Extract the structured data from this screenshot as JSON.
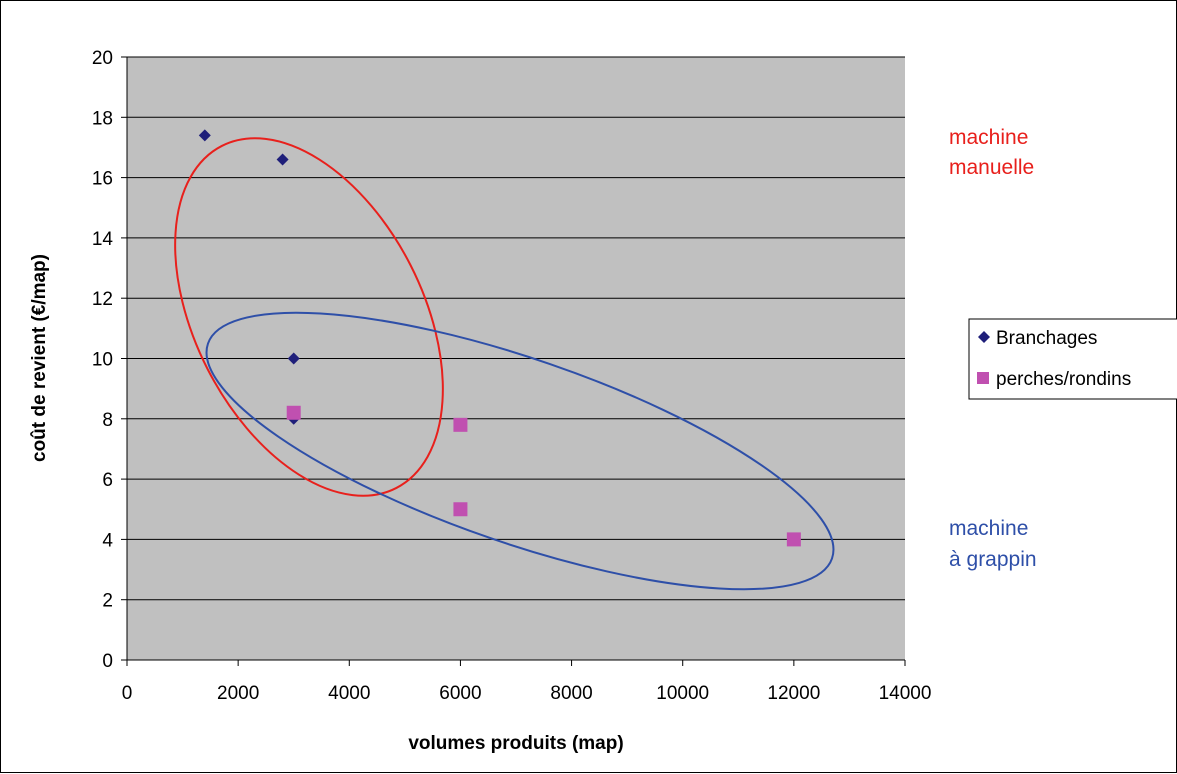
{
  "chart_data": {
    "type": "scatter",
    "title": "",
    "xlabel": "volumes produits (map)",
    "ylabel": "coût de revient (€/map)",
    "xlim": [
      0,
      14000
    ],
    "ylim": [
      0,
      20
    ],
    "x_ticks": [
      0,
      2000,
      4000,
      6000,
      8000,
      10000,
      12000,
      14000
    ],
    "y_ticks": [
      0,
      2,
      4,
      6,
      8,
      10,
      12,
      14,
      16,
      18,
      20
    ],
    "grid": "horizontal",
    "plot_background": "#c0c0c0",
    "legend_position": "right",
    "series": [
      {
        "name": "Branchages",
        "marker": "diamond",
        "color": "#1f1f7a",
        "points": [
          [
            1400,
            17.4
          ],
          [
            2800,
            16.6
          ],
          [
            3000,
            10.0
          ],
          [
            3000,
            8.0
          ]
        ]
      },
      {
        "name": "perches/rondins",
        "marker": "square",
        "color": "#c050b0",
        "points": [
          [
            3000,
            8.2
          ],
          [
            6000,
            7.8
          ],
          [
            6000,
            5.0
          ],
          [
            12000,
            4.0
          ]
        ]
      }
    ],
    "annotations": [
      {
        "text_lines": [
          "machine",
          "manuelle"
        ],
        "color": "#e8201c"
      },
      {
        "text_lines": [
          "machine",
          "à grappin"
        ],
        "color": "#2e4fa8"
      }
    ]
  }
}
